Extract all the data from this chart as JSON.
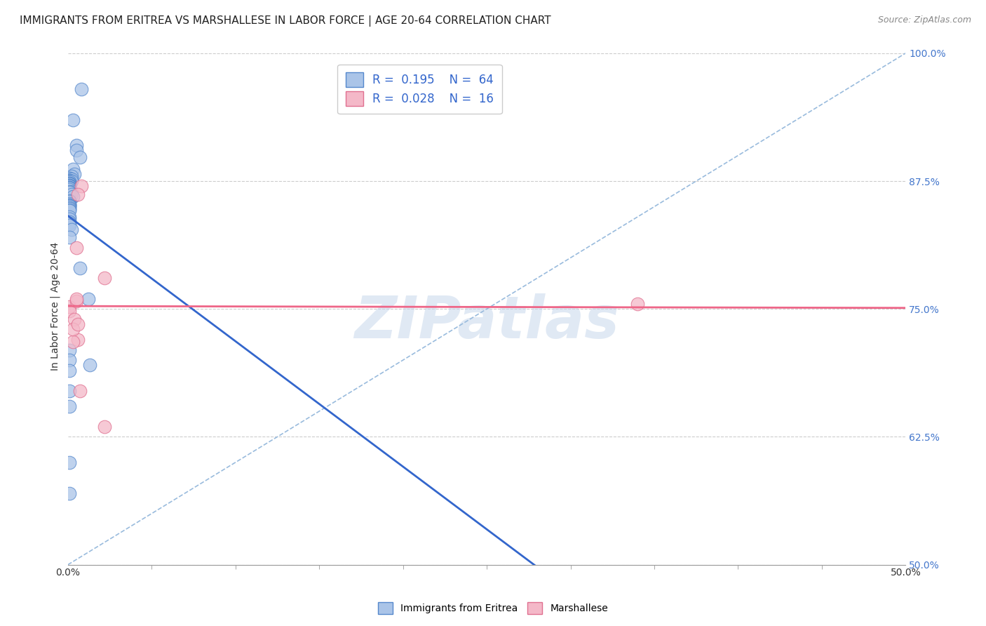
{
  "title": "IMMIGRANTS FROM ERITREA VS MARSHALLESE IN LABOR FORCE | AGE 20-64 CORRELATION CHART",
  "source": "Source: ZipAtlas.com",
  "ylabel_label": "In Labor Force | Age 20-64",
  "xlim": [
    0.0,
    0.5
  ],
  "ylim": [
    0.5,
    1.005
  ],
  "xticks": [
    0.0,
    0.5
  ],
  "xticklabels": [
    "0.0%",
    "50.0%"
  ],
  "yticks": [
    0.5,
    0.625,
    0.75,
    0.875,
    1.0
  ],
  "yticklabels": [
    "50.0%",
    "62.5%",
    "75.0%",
    "87.5%",
    "100.0%"
  ],
  "grid_color": "#cccccc",
  "background_color": "#ffffff",
  "watermark": "ZIPatlas",
  "legend_R1": "0.195",
  "legend_N1": "64",
  "legend_R2": "0.028",
  "legend_N2": "16",
  "color_eritrea": "#aac4e8",
  "color_marshallese": "#f4b8c8",
  "color_eritrea_edge": "#5588cc",
  "color_marshallese_edge": "#e07090",
  "color_eritrea_line": "#3366cc",
  "color_marshallese_line": "#ee6688",
  "color_dashed_line": "#99bbdd",
  "eritrea_x": [
    0.003,
    0.005,
    0.008,
    0.005,
    0.007,
    0.003,
    0.004,
    0.002,
    0.001,
    0.001,
    0.002,
    0.001,
    0.001,
    0.001,
    0.002,
    0.001,
    0.001,
    0.001,
    0.001,
    0.001,
    0.001,
    0.001,
    0.001,
    0.001,
    0.001,
    0.001,
    0.001,
    0.001,
    0.001,
    0.001,
    0.001,
    0.002,
    0.001,
    0.001,
    0.002,
    0.003,
    0.001,
    0.001,
    0.001,
    0.001,
    0.001,
    0.001,
    0.001,
    0.001,
    0.001,
    0.001,
    0.001,
    0.001,
    0.001,
    0.001,
    0.001,
    0.001,
    0.002,
    0.001,
    0.007,
    0.012,
    0.001,
    0.001,
    0.013,
    0.001,
    0.001,
    0.001,
    0.001,
    0.001
  ],
  "eritrea_y": [
    0.935,
    0.91,
    0.965,
    0.905,
    0.898,
    0.887,
    0.882,
    0.88,
    0.878,
    0.878,
    0.877,
    0.876,
    0.876,
    0.875,
    0.875,
    0.874,
    0.873,
    0.873,
    0.872,
    0.872,
    0.871,
    0.871,
    0.87,
    0.87,
    0.87,
    0.87,
    0.869,
    0.869,
    0.868,
    0.868,
    0.867,
    0.865,
    0.865,
    0.864,
    0.862,
    0.86,
    0.856,
    0.855,
    0.853,
    0.852,
    0.852,
    0.851,
    0.85,
    0.849,
    0.848,
    0.847,
    0.846,
    0.84,
    0.838,
    0.835,
    0.834,
    0.832,
    0.828,
    0.82,
    0.79,
    0.76,
    0.71,
    0.7,
    0.695,
    0.69,
    0.67,
    0.655,
    0.57,
    0.6
  ],
  "marshallese_x": [
    0.001,
    0.001,
    0.004,
    0.008,
    0.006,
    0.005,
    0.006,
    0.003,
    0.003,
    0.005,
    0.005,
    0.006,
    0.007,
    0.022,
    0.022,
    0.34
  ],
  "marshallese_y": [
    0.752,
    0.748,
    0.74,
    0.87,
    0.862,
    0.81,
    0.72,
    0.718,
    0.73,
    0.758,
    0.76,
    0.735,
    0.67,
    0.635,
    0.78,
    0.755
  ],
  "title_fontsize": 11,
  "axis_label_fontsize": 10,
  "tick_fontsize": 10,
  "legend_fontsize": 12,
  "source_fontsize": 9,
  "ytick_color": "#4477cc",
  "xtick_color": "#333333"
}
